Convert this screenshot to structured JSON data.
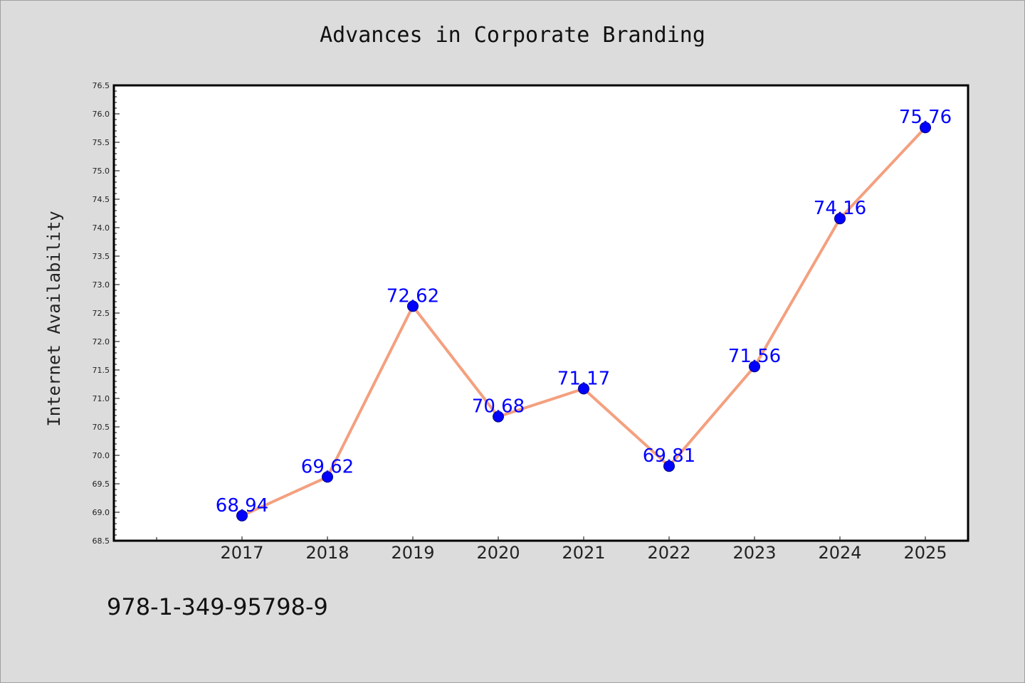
{
  "chart_data": {
    "type": "line",
    "title": "Advances in Corporate Branding",
    "xlabel": "",
    "ylabel": "Internet Availability",
    "categories": [
      "2017",
      "2018",
      "2019",
      "2020",
      "2021",
      "2022",
      "2023",
      "2024",
      "2025"
    ],
    "series": [
      {
        "values": [
          68.94,
          69.62,
          72.62,
          70.68,
          71.17,
          69.81,
          71.56,
          74.16,
          75.76
        ],
        "labels": [
          "68.94",
          "69.62",
          "72.62",
          "70.68",
          "71.17",
          "69.81",
          "71.56",
          "74.16",
          "75.76"
        ]
      }
    ],
    "ylim": [
      68.5,
      76.5
    ],
    "ytick_step": 0.5,
    "ytick_labels": [
      "68.5",
      "69.0",
      "69.5",
      "70.0",
      "70.5",
      "71.0",
      "71.5",
      "72.0",
      "72.5",
      "73.0",
      "73.5",
      "74.0",
      "74.5",
      "75.0",
      "75.5",
      "76.0",
      "76.5"
    ],
    "grid": false,
    "legend": "none",
    "line_color": "#f4a07f",
    "marker_color": "#0000ff",
    "label_color": "#0000ff"
  },
  "footer": {
    "isbn": "978-1-349-95798-9"
  }
}
